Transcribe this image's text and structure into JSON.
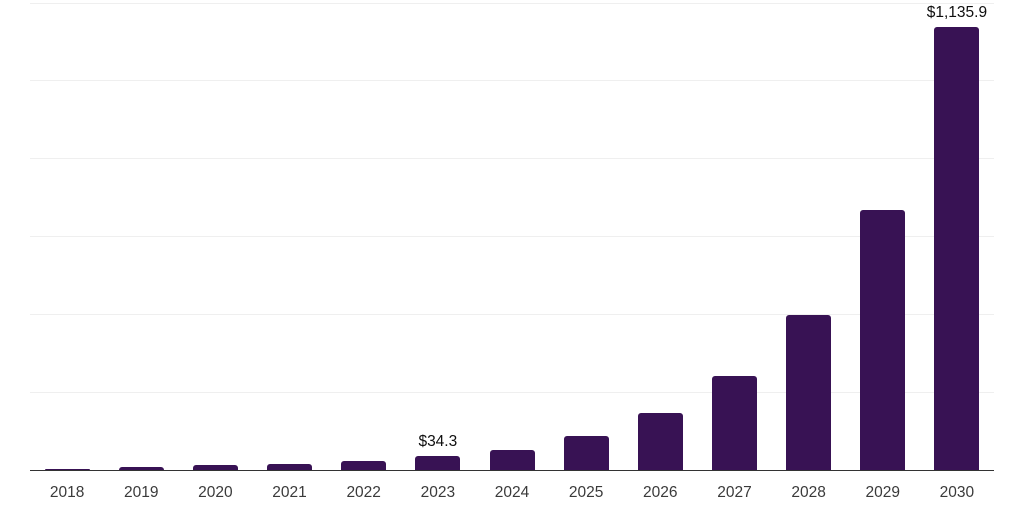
{
  "chart": {
    "background_color": "#ffffff",
    "bar_color": "#381254",
    "axis_line_color": "#333333",
    "gridline_color": "#efefef",
    "tick_label_color": "#3a3a3a",
    "data_label_color": "#0f0f0f"
  },
  "chart_data": {
    "type": "bar",
    "title": "",
    "xlabel": "",
    "ylabel": "",
    "categories": [
      "2018",
      "2019",
      "2020",
      "2021",
      "2022",
      "2023",
      "2024",
      "2025",
      "2026",
      "2027",
      "2028",
      "2029",
      "2030"
    ],
    "values": [
      2.5,
      7,
      11,
      15,
      22,
      34.3,
      51,
      87,
      144,
      240,
      396,
      668,
      1135.9
    ],
    "data_labels": [
      "",
      "",
      "",
      "",
      "",
      "$34.3",
      "",
      "",
      "",
      "",
      "",
      "",
      "$1,135.9"
    ],
    "ylim": [
      0,
      1200
    ],
    "grid_step": 200,
    "grid": "horizontal",
    "legend": "none",
    "y_tick_labels_visible": false
  }
}
